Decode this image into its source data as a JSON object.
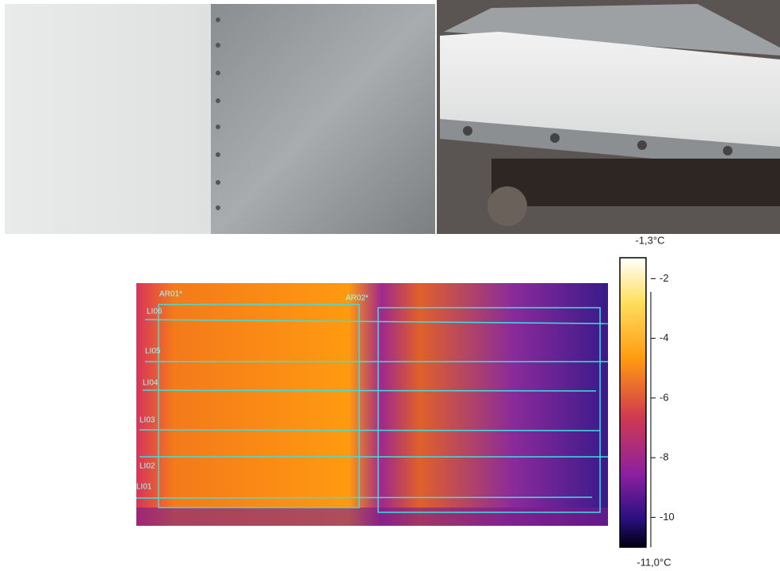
{
  "thermal": {
    "areas": [
      "AR01*",
      "AR02*"
    ],
    "lines": [
      "LI06",
      "LI05",
      "LI04",
      "LI03",
      "LI02",
      "LI01"
    ],
    "colorbar": {
      "max": {
        "value": -1.3,
        "label": "-1,3°C"
      },
      "min": {
        "value": -11.0,
        "label": "-11,0°C"
      },
      "ticks": [
        -2,
        -4,
        -6,
        -8,
        -10
      ]
    }
  }
}
